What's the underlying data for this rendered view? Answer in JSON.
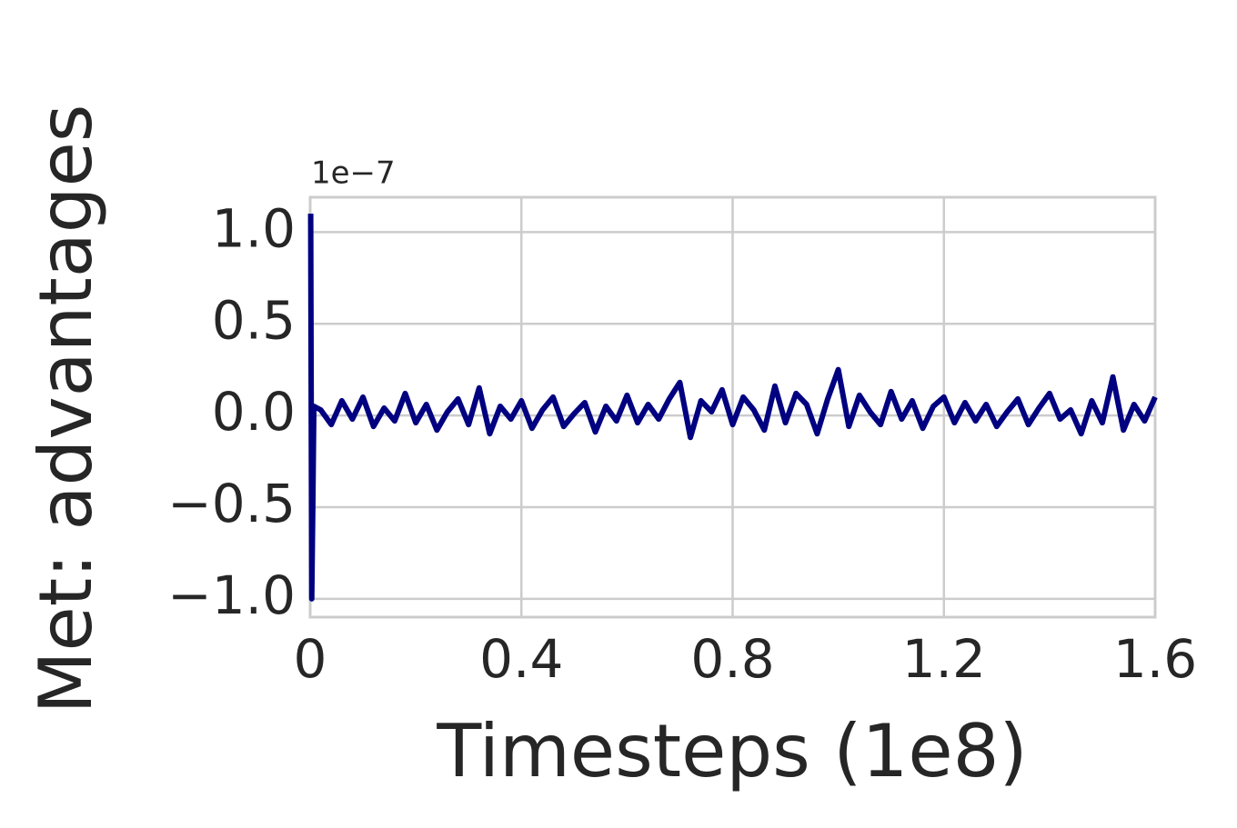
{
  "chart_data": {
    "type": "line",
    "xlabel": "Timesteps (1e8)",
    "ylabel": "Met: advantages",
    "y_offset_label": "1e−7",
    "xlim": [
      0,
      1.6
    ],
    "ylim": [
      -1.1,
      1.19
    ],
    "xticks": [
      0,
      0.4,
      0.8,
      1.2,
      1.6
    ],
    "yticks": [
      {
        "value": -1.0,
        "label": "−1.0"
      },
      {
        "value": -0.5,
        "label": "−0.5"
      },
      {
        "value": 0.0,
        "label": "0.0"
      },
      {
        "value": 0.5,
        "label": "0.5"
      },
      {
        "value": 1.0,
        "label": "1.0"
      }
    ],
    "grid": true,
    "series": [
      {
        "name": "advantages",
        "color": "#000080",
        "x": [
          0.001,
          0.003,
          0.005,
          0.007,
          0.02,
          0.04,
          0.06,
          0.08,
          0.1,
          0.12,
          0.14,
          0.16,
          0.18,
          0.2,
          0.22,
          0.24,
          0.26,
          0.28,
          0.3,
          0.32,
          0.34,
          0.36,
          0.38,
          0.4,
          0.42,
          0.44,
          0.46,
          0.48,
          0.5,
          0.52,
          0.54,
          0.56,
          0.58,
          0.6,
          0.62,
          0.64,
          0.66,
          0.68,
          0.7,
          0.72,
          0.74,
          0.76,
          0.78,
          0.8,
          0.82,
          0.84,
          0.86,
          0.88,
          0.9,
          0.92,
          0.94,
          0.96,
          0.98,
          1.0,
          1.02,
          1.04,
          1.06,
          1.08,
          1.1,
          1.12,
          1.14,
          1.16,
          1.18,
          1.2,
          1.22,
          1.24,
          1.26,
          1.28,
          1.3,
          1.32,
          1.34,
          1.36,
          1.38,
          1.4,
          1.42,
          1.44,
          1.46,
          1.48,
          1.5,
          1.52,
          1.54,
          1.56,
          1.58,
          1.6
        ],
        "values": [
          1.1,
          -1.0,
          -0.5,
          0.05,
          0.03,
          -0.05,
          0.08,
          -0.02,
          0.1,
          -0.06,
          0.04,
          -0.03,
          0.12,
          -0.04,
          0.06,
          -0.08,
          0.02,
          0.09,
          -0.05,
          0.15,
          -0.1,
          0.05,
          -0.02,
          0.08,
          -0.07,
          0.03,
          0.1,
          -0.06,
          0.01,
          0.07,
          -0.09,
          0.05,
          -0.03,
          0.11,
          -0.04,
          0.06,
          -0.02,
          0.09,
          0.18,
          -0.12,
          0.08,
          0.02,
          0.14,
          -0.05,
          0.1,
          0.03,
          -0.08,
          0.16,
          -0.04,
          0.12,
          0.06,
          -0.1,
          0.09,
          0.25,
          -0.06,
          0.11,
          0.02,
          -0.05,
          0.13,
          -0.02,
          0.08,
          -0.07,
          0.05,
          0.1,
          -0.04,
          0.07,
          -0.03,
          0.06,
          -0.06,
          0.02,
          0.09,
          -0.05,
          0.04,
          0.12,
          -0.02,
          0.03,
          -0.1,
          0.08,
          -0.04,
          0.21,
          -0.08,
          0.06,
          -0.03,
          0.1
        ]
      }
    ]
  }
}
